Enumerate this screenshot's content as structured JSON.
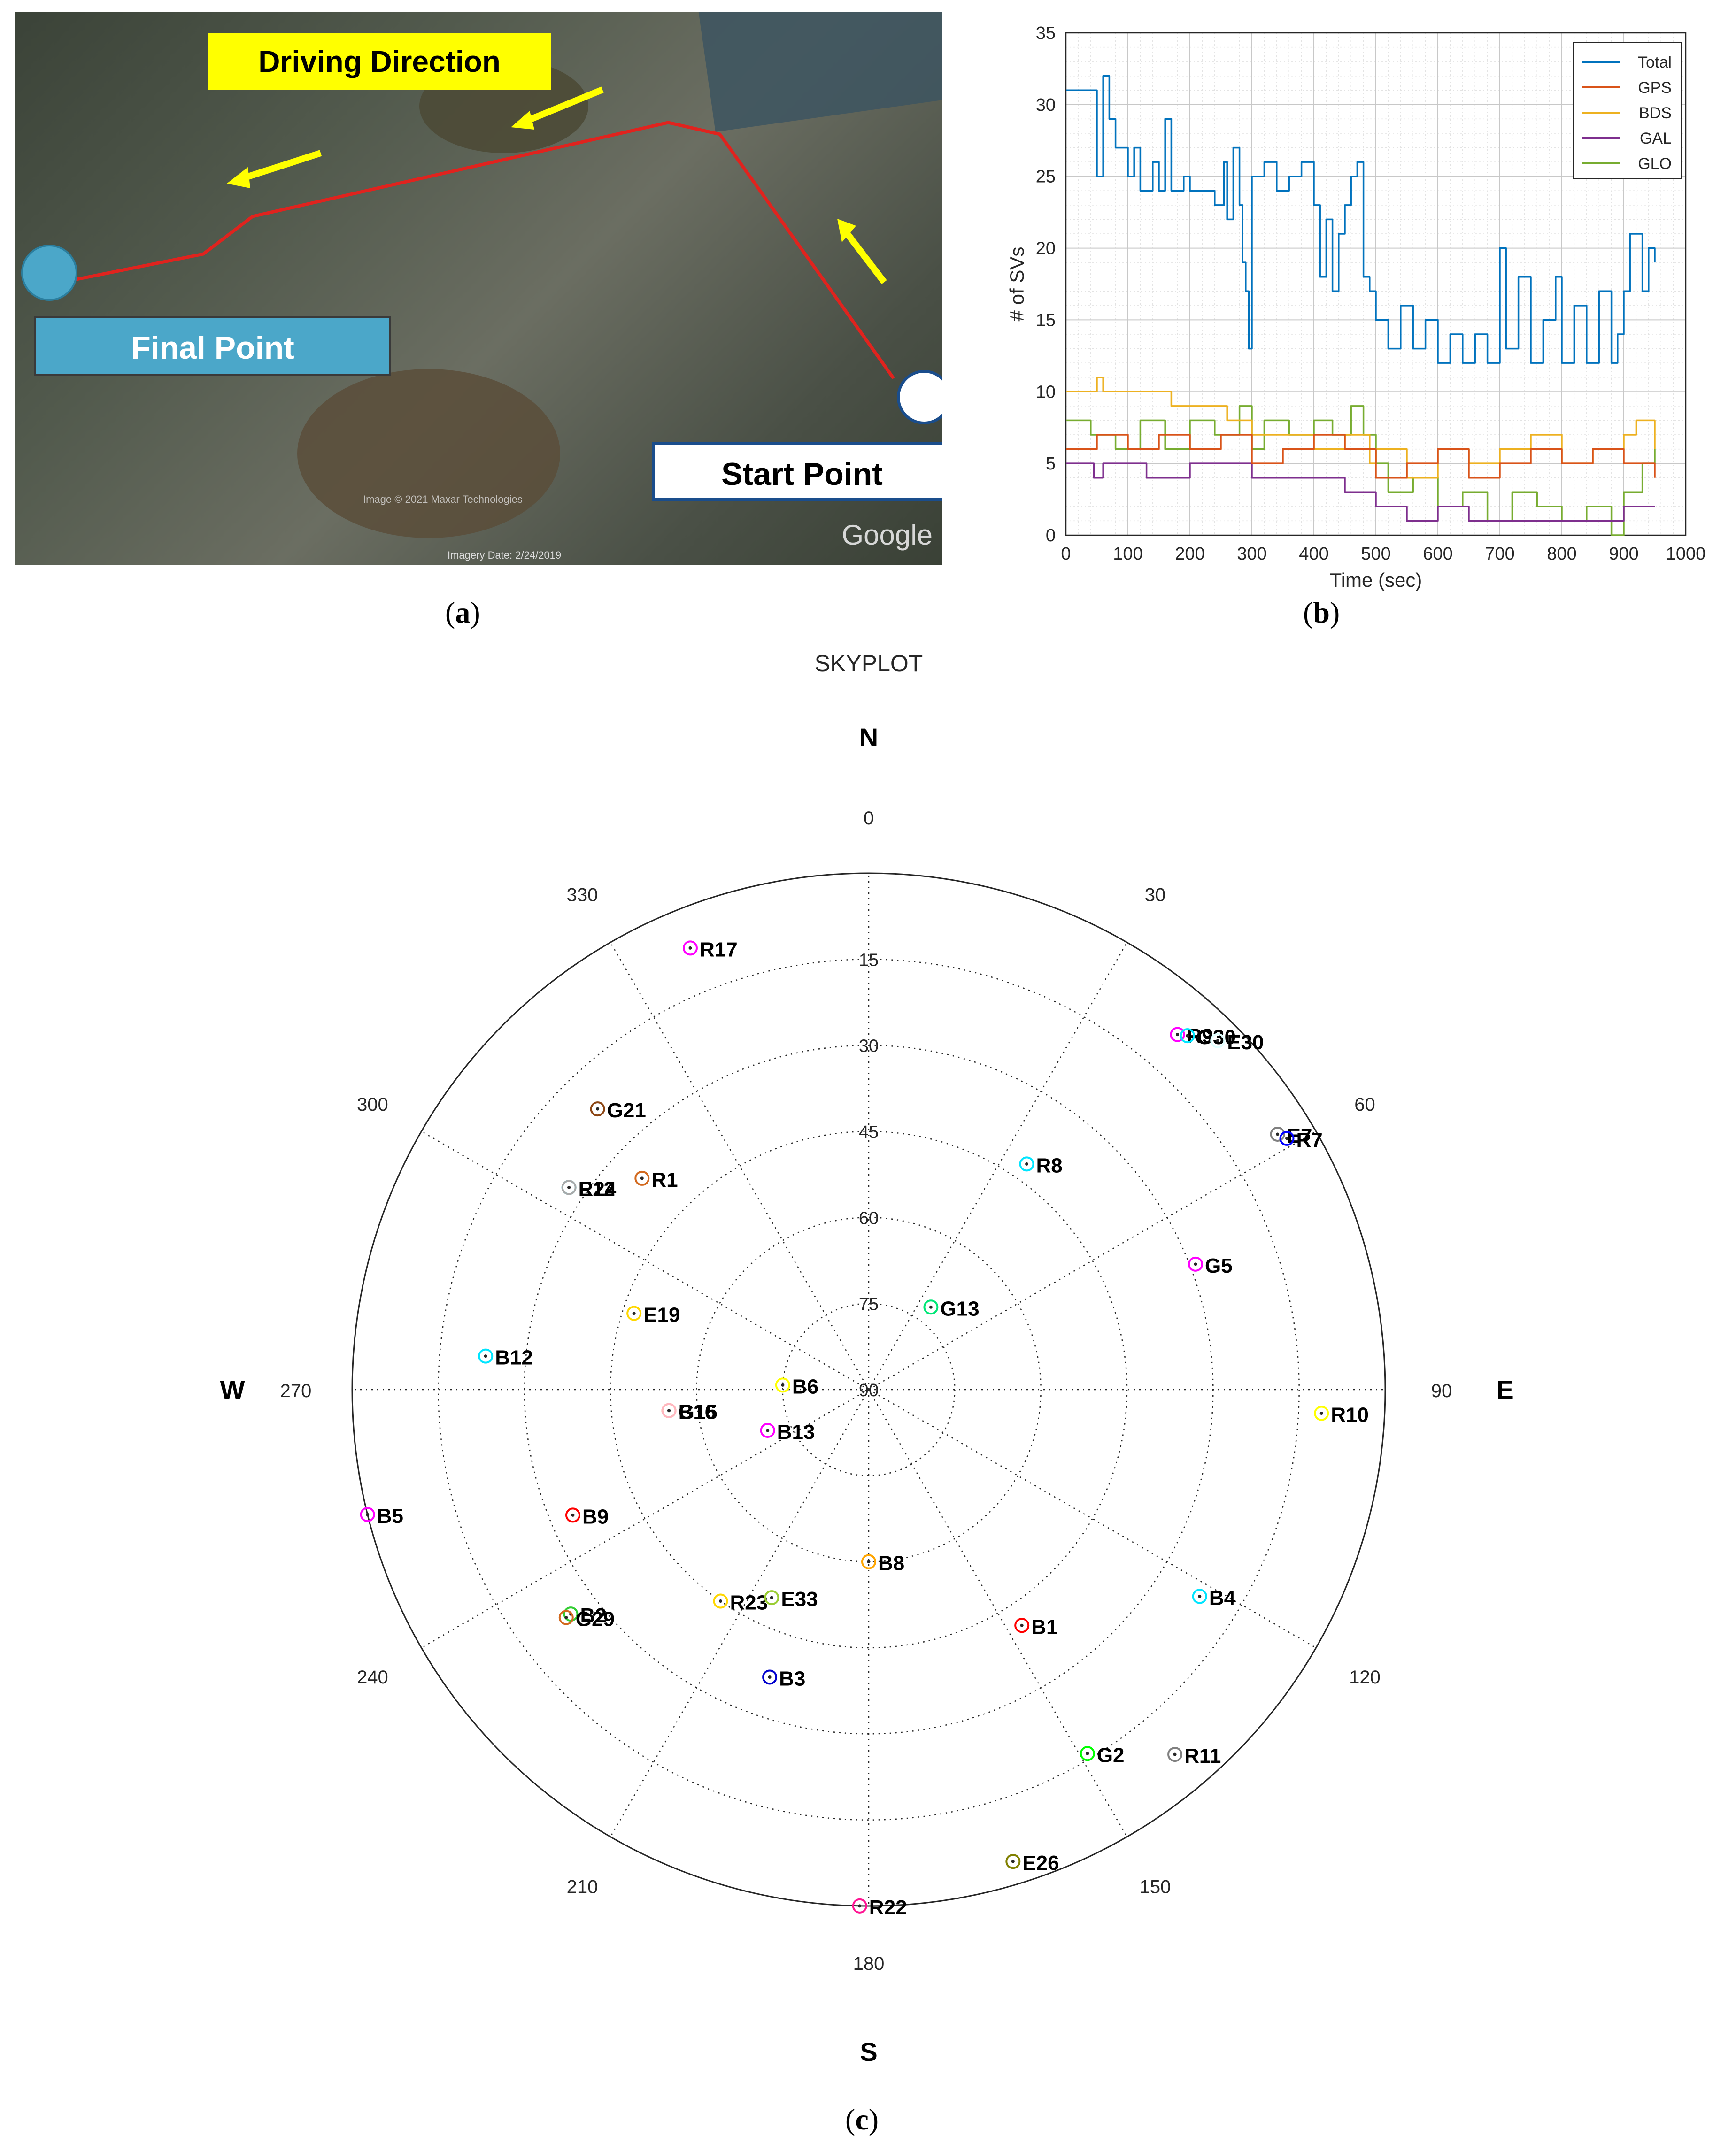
{
  "map": {
    "driving_direction_label": "Driving Direction",
    "final_point_label": "Final Point",
    "start_point_label": "Start Point",
    "google_label": "Google",
    "imagery_date": "Imagery Date: 2/24/2019",
    "copyright_text": "Image © 2021 Maxar Technologies"
  },
  "panel_labels": {
    "a": "a",
    "b": "b",
    "c": "c"
  },
  "chart_data": [
    {
      "type": "line",
      "xlabel": "Time (sec)",
      "ylabel": "# of SVs",
      "xlim": [
        0,
        1000
      ],
      "ylim": [
        0,
        35
      ],
      "xticks": [
        0,
        100,
        200,
        300,
        400,
        500,
        600,
        700,
        800,
        900,
        1000
      ],
      "yticks": [
        0,
        5,
        10,
        15,
        20,
        25,
        30,
        35
      ],
      "grid": true,
      "legend_position": "top-right",
      "series": [
        {
          "name": "Total",
          "color": "#0072bd",
          "points": [
            [
              0,
              31
            ],
            [
              40,
              31
            ],
            [
              50,
              25
            ],
            [
              60,
              32
            ],
            [
              70,
              29
            ],
            [
              80,
              27
            ],
            [
              100,
              25
            ],
            [
              110,
              27
            ],
            [
              120,
              24
            ],
            [
              140,
              26
            ],
            [
              150,
              24
            ],
            [
              160,
              29
            ],
            [
              170,
              24
            ],
            [
              190,
              25
            ],
            [
              200,
              24
            ],
            [
              220,
              24
            ],
            [
              240,
              23
            ],
            [
              255,
              26
            ],
            [
              260,
              22
            ],
            [
              270,
              27
            ],
            [
              280,
              23
            ],
            [
              285,
              19
            ],
            [
              290,
              17
            ],
            [
              295,
              13
            ],
            [
              300,
              25
            ],
            [
              320,
              26
            ],
            [
              340,
              24
            ],
            [
              360,
              25
            ],
            [
              380,
              26
            ],
            [
              400,
              23
            ],
            [
              410,
              18
            ],
            [
              420,
              22
            ],
            [
              430,
              17
            ],
            [
              440,
              21
            ],
            [
              450,
              23
            ],
            [
              460,
              25
            ],
            [
              470,
              26
            ],
            [
              480,
              18
            ],
            [
              490,
              17
            ],
            [
              500,
              15
            ],
            [
              520,
              13
            ],
            [
              540,
              16
            ],
            [
              560,
              13
            ],
            [
              580,
              15
            ],
            [
              600,
              12
            ],
            [
              620,
              14
            ],
            [
              640,
              12
            ],
            [
              660,
              14
            ],
            [
              680,
              12
            ],
            [
              700,
              20
            ],
            [
              710,
              13
            ],
            [
              730,
              18
            ],
            [
              750,
              12
            ],
            [
              770,
              15
            ],
            [
              790,
              18
            ],
            [
              800,
              12
            ],
            [
              820,
              16
            ],
            [
              840,
              12
            ],
            [
              860,
              17
            ],
            [
              880,
              12
            ],
            [
              890,
              14
            ],
            [
              900,
              17
            ],
            [
              910,
              21
            ],
            [
              930,
              17
            ],
            [
              940,
              20
            ],
            [
              950,
              19
            ]
          ]
        },
        {
          "name": "GPS",
          "color": "#d95319",
          "points": [
            [
              0,
              6
            ],
            [
              50,
              7
            ],
            [
              100,
              6
            ],
            [
              150,
              7
            ],
            [
              200,
              6
            ],
            [
              250,
              7
            ],
            [
              300,
              5
            ],
            [
              350,
              6
            ],
            [
              400,
              7
            ],
            [
              450,
              6
            ],
            [
              500,
              4
            ],
            [
              550,
              5
            ],
            [
              600,
              6
            ],
            [
              650,
              4
            ],
            [
              700,
              5
            ],
            [
              750,
              6
            ],
            [
              800,
              5
            ],
            [
              850,
              6
            ],
            [
              900,
              5
            ],
            [
              950,
              4
            ]
          ]
        },
        {
          "name": "BDS",
          "color": "#edb120",
          "points": [
            [
              0,
              10
            ],
            [
              40,
              10
            ],
            [
              50,
              11
            ],
            [
              60,
              10
            ],
            [
              160,
              10
            ],
            [
              170,
              9
            ],
            [
              200,
              9
            ],
            [
              260,
              8
            ],
            [
              300,
              7
            ],
            [
              350,
              7
            ],
            [
              400,
              6
            ],
            [
              450,
              7
            ],
            [
              490,
              5
            ],
            [
              500,
              6
            ],
            [
              550,
              4
            ],
            [
              600,
              6
            ],
            [
              650,
              5
            ],
            [
              700,
              6
            ],
            [
              750,
              7
            ],
            [
              800,
              5
            ],
            [
              850,
              6
            ],
            [
              900,
              7
            ],
            [
              920,
              8
            ],
            [
              950,
              6
            ]
          ]
        },
        {
          "name": "GAL",
          "color": "#7e2f8e",
          "points": [
            [
              0,
              5
            ],
            [
              30,
              5
            ],
            [
              45,
              4
            ],
            [
              60,
              5
            ],
            [
              100,
              5
            ],
            [
              130,
              4
            ],
            [
              150,
              4
            ],
            [
              200,
              5
            ],
            [
              250,
              5
            ],
            [
              300,
              4
            ],
            [
              350,
              4
            ],
            [
              400,
              4
            ],
            [
              450,
              3
            ],
            [
              500,
              2
            ],
            [
              550,
              1
            ],
            [
              600,
              2
            ],
            [
              650,
              1
            ],
            [
              700,
              1
            ],
            [
              750,
              1
            ],
            [
              800,
              1
            ],
            [
              850,
              1
            ],
            [
              900,
              2
            ],
            [
              950,
              2
            ]
          ]
        },
        {
          "name": "GLO",
          "color": "#77ac30",
          "points": [
            [
              0,
              8
            ],
            [
              40,
              7
            ],
            [
              80,
              6
            ],
            [
              120,
              8
            ],
            [
              160,
              6
            ],
            [
              200,
              8
            ],
            [
              240,
              7
            ],
            [
              280,
              9
            ],
            [
              300,
              6
            ],
            [
              320,
              8
            ],
            [
              360,
              7
            ],
            [
              400,
              8
            ],
            [
              430,
              7
            ],
            [
              460,
              9
            ],
            [
              480,
              7
            ],
            [
              500,
              5
            ],
            [
              520,
              3
            ],
            [
              560,
              4
            ],
            [
              600,
              2
            ],
            [
              640,
              3
            ],
            [
              680,
              1
            ],
            [
              720,
              3
            ],
            [
              760,
              2
            ],
            [
              800,
              1
            ],
            [
              840,
              2
            ],
            [
              880,
              0
            ],
            [
              900,
              3
            ],
            [
              930,
              5
            ],
            [
              950,
              6
            ]
          ]
        }
      ]
    },
    {
      "type": "scatter",
      "title": "SKYPLOT",
      "projection": "polar",
      "direction_labels": {
        "north": "N",
        "south": "S",
        "east": "E",
        "west": "W"
      },
      "azimuth_ticks": [
        "0",
        "30",
        "60",
        "90",
        "120",
        "150",
        "180",
        "210",
        "240",
        "270",
        "300",
        "330"
      ],
      "elevation_ticks": [
        "15",
        "30",
        "45",
        "60",
        "75",
        "90"
      ],
      "satellites": [
        {
          "id": "R17",
          "azimuth": 338,
          "elevation": 7,
          "color": "#ff00ff"
        },
        {
          "id": "G21",
          "azimuth": 316,
          "elevation": 22,
          "color": "#8b4513"
        },
        {
          "id": "R1",
          "azimuth": 313,
          "elevation": 36,
          "color": "#d2691e"
        },
        {
          "id": "E12",
          "azimuth": 304,
          "elevation": 27,
          "color": "#00e5ff"
        },
        {
          "id": "R24",
          "azimuth": 304,
          "elevation": 27,
          "color": "#a9a9a9"
        },
        {
          "id": "E19",
          "azimuth": 288,
          "elevation": 47,
          "color": "#ffd700"
        },
        {
          "id": "B12",
          "azimuth": 275,
          "elevation": 23,
          "color": "#00e5ff"
        },
        {
          "id": "B6",
          "azimuth": 273,
          "elevation": 75,
          "color": "#ffff00"
        },
        {
          "id": "B16",
          "azimuth": 264,
          "elevation": 55,
          "color": "#ff8c00"
        },
        {
          "id": "G15",
          "azimuth": 264,
          "elevation": 55,
          "color": "#ffb6c1"
        },
        {
          "id": "B13",
          "azimuth": 248,
          "elevation": 71,
          "color": "#ff00ff"
        },
        {
          "id": "B5",
          "azimuth": 256,
          "elevation": 0,
          "color": "#ff00ff"
        },
        {
          "id": "B9",
          "azimuth": 247,
          "elevation": 34,
          "color": "#ff0000"
        },
        {
          "id": "B2",
          "azimuth": 233,
          "elevation": 25,
          "color": "#32cd32"
        },
        {
          "id": "G29",
          "azimuth": 233,
          "elevation": 24,
          "color": "#d2691e"
        },
        {
          "id": "R23",
          "azimuth": 215,
          "elevation": 45,
          "color": "#ffd700"
        },
        {
          "id": "E33",
          "azimuth": 205,
          "elevation": 50,
          "color": "#9acd32"
        },
        {
          "id": "B3",
          "azimuth": 199,
          "elevation": 37,
          "color": "#0000cd"
        },
        {
          "id": "B8",
          "azimuth": 180,
          "elevation": 60,
          "color": "#ffa500"
        },
        {
          "id": "R22",
          "azimuth": 181,
          "elevation": 0,
          "color": "#ff1493"
        },
        {
          "id": "E26",
          "azimuth": 163,
          "elevation": 4,
          "color": "#808000"
        },
        {
          "id": "B1",
          "azimuth": 147,
          "elevation": 41,
          "color": "#ff0000"
        },
        {
          "id": "G2",
          "azimuth": 149,
          "elevation": 16,
          "color": "#00ff00"
        },
        {
          "id": "R11",
          "azimuth": 140,
          "elevation": 7,
          "color": "#808080"
        },
        {
          "id": "B4",
          "azimuth": 122,
          "elevation": 22,
          "color": "#00e5ff"
        },
        {
          "id": "R10",
          "azimuth": 93,
          "elevation": 11,
          "color": "#ffff00"
        },
        {
          "id": "G5",
          "azimuth": 69,
          "elevation": 29,
          "color": "#ff00ff"
        },
        {
          "id": "G13",
          "azimuth": 37,
          "elevation": 72,
          "color": "#00e676"
        },
        {
          "id": "R8",
          "azimuth": 35,
          "elevation": 42,
          "color": "#00e5ff"
        },
        {
          "id": "R9",
          "azimuth": 41,
          "elevation": 8,
          "color": "#ff00ff"
        },
        {
          "id": "G30",
          "azimuth": 42,
          "elevation": 7,
          "color": "#00e5ff"
        },
        {
          "id": "E30",
          "azimuth": 45,
          "elevation": 4,
          "color": "#e0ffff"
        },
        {
          "id": "E7",
          "azimuth": 58,
          "elevation": 6,
          "color": "#808080"
        },
        {
          "id": "R7",
          "azimuth": 59,
          "elevation": 5,
          "color": "#0000ff"
        }
      ]
    }
  ]
}
